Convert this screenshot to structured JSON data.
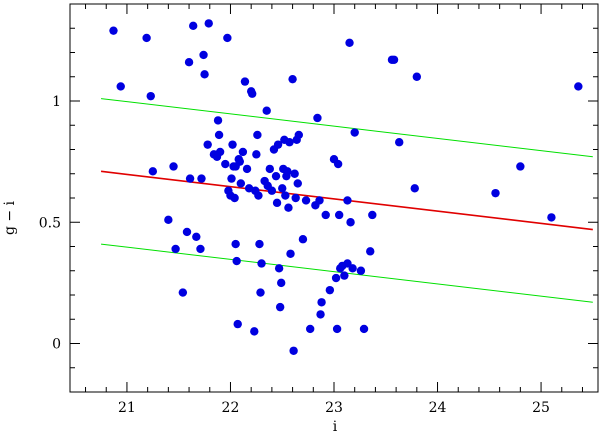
{
  "chart_data": {
    "type": "scatter",
    "title": "",
    "xlabel": "i",
    "ylabel": "g − i",
    "xlim": [
      20.45,
      25.55
    ],
    "ylim": [
      -0.2,
      1.4
    ],
    "xticks": [
      21,
      22,
      23,
      24,
      25
    ],
    "xtick_labels": [
      "21",
      "22",
      "23",
      "24",
      "25"
    ],
    "yticks": [
      0,
      0.5,
      1
    ],
    "ytick_labels": [
      "0",
      "0.5",
      "1"
    ],
    "x_minor_step": 0.2,
    "y_minor_step": 0.1,
    "grid": false,
    "point_color": "#0000e0",
    "lines": [
      {
        "color": "#00e000",
        "x": [
          20.75,
          25.5
        ],
        "y": [
          1.01,
          0.77
        ]
      },
      {
        "color": "#e00000",
        "x": [
          20.75,
          25.5
        ],
        "y": [
          0.71,
          0.47
        ]
      },
      {
        "color": "#00e000",
        "x": [
          20.75,
          25.5
        ],
        "y": [
          0.41,
          0.17
        ]
      }
    ],
    "points": [
      [
        20.87,
        1.29
      ],
      [
        20.94,
        1.06
      ],
      [
        21.19,
        1.26
      ],
      [
        21.23,
        1.02
      ],
      [
        21.25,
        0.71
      ],
      [
        21.4,
        0.51
      ],
      [
        21.45,
        0.73
      ],
      [
        21.47,
        0.39
      ],
      [
        21.54,
        0.21
      ],
      [
        21.58,
        0.46
      ],
      [
        21.6,
        1.16
      ],
      [
        21.61,
        0.68
      ],
      [
        21.64,
        1.31
      ],
      [
        21.67,
        0.44
      ],
      [
        21.71,
        0.39
      ],
      [
        21.72,
        0.68
      ],
      [
        21.74,
        1.19
      ],
      [
        21.75,
        1.11
      ],
      [
        21.78,
        0.82
      ],
      [
        21.79,
        1.32
      ],
      [
        21.84,
        0.78
      ],
      [
        21.87,
        0.77
      ],
      [
        21.88,
        0.92
      ],
      [
        21.89,
        0.86
      ],
      [
        21.9,
        0.79
      ],
      [
        21.95,
        0.74
      ],
      [
        21.97,
        1.26
      ],
      [
        21.98,
        0.63
      ],
      [
        22.0,
        0.61
      ],
      [
        22.01,
        0.68
      ],
      [
        22.02,
        0.82
      ],
      [
        22.03,
        0.73
      ],
      [
        22.04,
        0.6
      ],
      [
        22.05,
        0.41
      ],
      [
        22.06,
        0.34
      ],
      [
        22.07,
        0.08
      ],
      [
        22.08,
        0.76
      ],
      [
        22.09,
        0.75
      ],
      [
        22.1,
        0.66
      ],
      [
        22.12,
        0.79
      ],
      [
        22.14,
        1.08
      ],
      [
        22.16,
        0.72
      ],
      [
        22.18,
        0.64
      ],
      [
        22.2,
        1.04
      ],
      [
        22.21,
        1.03
      ],
      [
        22.23,
        0.05
      ],
      [
        22.24,
        0.63
      ],
      [
        22.25,
        0.78
      ],
      [
        22.26,
        0.86
      ],
      [
        22.27,
        0.61
      ],
      [
        22.28,
        0.41
      ],
      [
        22.29,
        0.21
      ],
      [
        22.3,
        0.33
      ],
      [
        22.33,
        0.67
      ],
      [
        22.35,
        0.96
      ],
      [
        22.36,
        0.65
      ],
      [
        22.38,
        0.72
      ],
      [
        22.4,
        0.63
      ],
      [
        22.42,
        0.8
      ],
      [
        22.44,
        0.69
      ],
      [
        22.45,
        0.58
      ],
      [
        22.46,
        0.82
      ],
      [
        22.47,
        0.31
      ],
      [
        22.48,
        0.15
      ],
      [
        22.49,
        0.25
      ],
      [
        22.5,
        0.64
      ],
      [
        22.51,
        0.72
      ],
      [
        22.52,
        0.84
      ],
      [
        22.53,
        0.61
      ],
      [
        22.54,
        0.69
      ],
      [
        22.55,
        0.71
      ],
      [
        22.56,
        0.56
      ],
      [
        22.57,
        0.83
      ],
      [
        22.58,
        0.37
      ],
      [
        22.6,
        1.09
      ],
      [
        22.61,
        -0.03
      ],
      [
        22.62,
        0.7
      ],
      [
        22.63,
        0.6
      ],
      [
        22.64,
        0.84
      ],
      [
        22.65,
        0.66
      ],
      [
        22.66,
        0.86
      ],
      [
        22.7,
        0.43
      ],
      [
        22.73,
        0.59
      ],
      [
        22.77,
        0.06
      ],
      [
        22.82,
        0.57
      ],
      [
        22.84,
        0.93
      ],
      [
        22.86,
        0.59
      ],
      [
        22.87,
        0.12
      ],
      [
        22.88,
        0.17
      ],
      [
        22.92,
        0.53
      ],
      [
        22.96,
        0.22
      ],
      [
        23.0,
        0.76
      ],
      [
        23.02,
        0.27
      ],
      [
        23.03,
        0.06
      ],
      [
        23.04,
        0.74
      ],
      [
        23.05,
        0.53
      ],
      [
        23.06,
        0.31
      ],
      [
        23.08,
        0.32
      ],
      [
        23.1,
        0.28
      ],
      [
        23.13,
        0.59
      ],
      [
        23.15,
        1.24
      ],
      [
        23.16,
        0.5
      ],
      [
        23.18,
        0.31
      ],
      [
        23.2,
        0.87
      ],
      [
        23.26,
        0.3
      ],
      [
        23.29,
        0.06
      ],
      [
        23.35,
        0.38
      ],
      [
        23.37,
        0.53
      ],
      [
        23.56,
        1.17
      ],
      [
        23.63,
        0.83
      ],
      [
        23.78,
        0.64
      ],
      [
        23.8,
        1.1
      ],
      [
        24.56,
        0.62
      ],
      [
        24.8,
        0.73
      ],
      [
        25.1,
        0.52
      ],
      [
        25.36,
        1.06
      ],
      [
        23.58,
        1.17
      ],
      [
        22.05,
        0.73
      ],
      [
        23.13,
        0.33
      ]
    ]
  }
}
